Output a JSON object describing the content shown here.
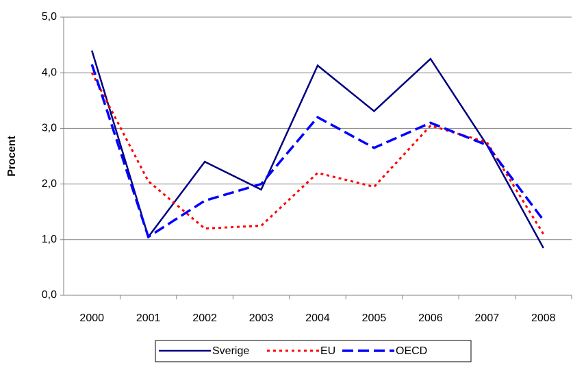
{
  "chart_data": {
    "type": "line",
    "y_label": "Procent",
    "categories": [
      "2000",
      "2001",
      "2002",
      "2003",
      "2004",
      "2005",
      "2006",
      "2007",
      "2008"
    ],
    "series": [
      {
        "name": "Sverige",
        "color": "#000080",
        "dash": "solid",
        "values": [
          4.4,
          1.05,
          2.4,
          1.9,
          4.13,
          3.31,
          4.25,
          2.7,
          0.85
        ]
      },
      {
        "name": "EU",
        "color": "#ff0000",
        "dash": "dotted",
        "values": [
          4.0,
          2.05,
          1.2,
          1.25,
          2.2,
          1.95,
          3.05,
          2.75,
          1.1
        ]
      },
      {
        "name": "OECD",
        "color": "#0000ff",
        "dash": "dashed",
        "values": [
          4.15,
          1.05,
          1.7,
          2.0,
          3.2,
          2.65,
          3.1,
          2.7,
          1.35
        ]
      }
    ],
    "ylim": [
      0,
      5
    ],
    "yticks": [
      {
        "value": 0,
        "label": "0,0"
      },
      {
        "value": 1,
        "label": "1,0"
      },
      {
        "value": 2,
        "label": "2,0"
      },
      {
        "value": 3,
        "label": "3,0"
      },
      {
        "value": 4,
        "label": "4,0"
      },
      {
        "value": 5,
        "label": "5,0"
      }
    ],
    "grid": true,
    "legend": "bottom"
  }
}
